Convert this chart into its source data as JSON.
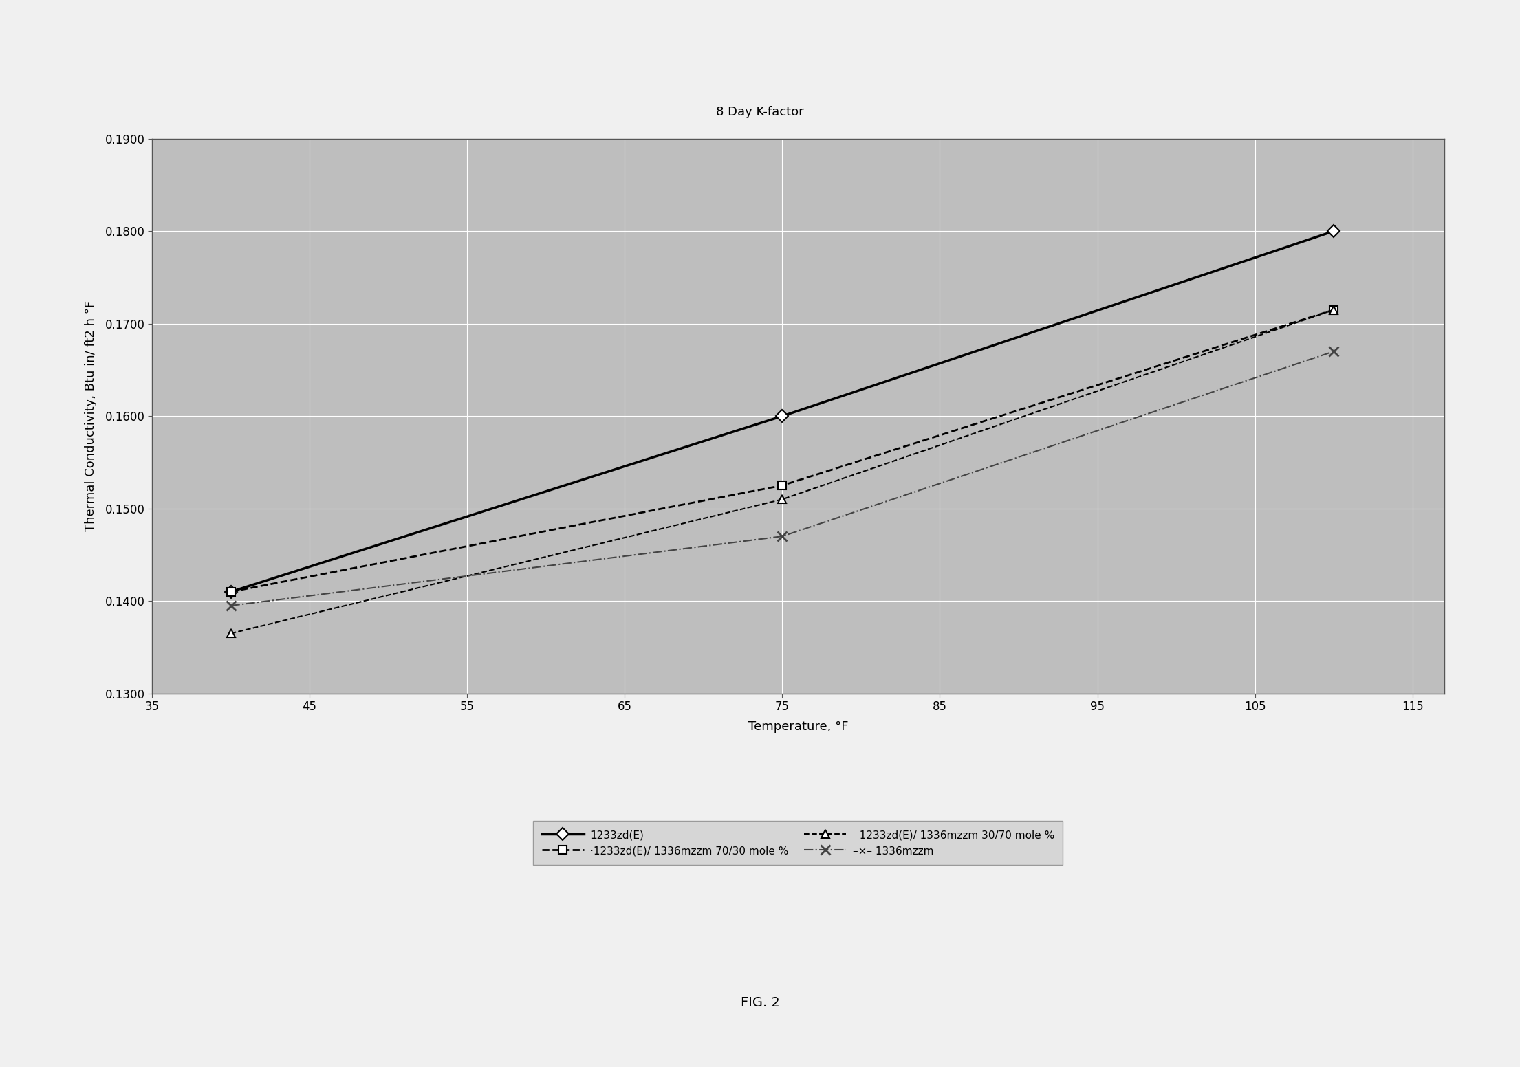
{
  "title": "8 Day K-factor",
  "xlabel": "Temperature, °F",
  "ylabel": "Thermal Conductivity, Btu in/ ft2 h °F",
  "fig_caption": "FIG. 2",
  "xlim": [
    35,
    117
  ],
  "ylim": [
    0.13,
    0.19
  ],
  "xticks": [
    35,
    45,
    55,
    65,
    75,
    85,
    95,
    105,
    115
  ],
  "yticks": [
    0.13,
    0.14,
    0.15,
    0.16,
    0.17,
    0.18,
    0.19
  ],
  "series": [
    {
      "label": "1233zd(E)",
      "x": [
        40,
        75,
        110
      ],
      "y": [
        0.141,
        0.16,
        0.18
      ],
      "color": "#000000",
      "linestyle": "-",
      "linewidth": 2.5,
      "marker": "D",
      "markersize": 9,
      "markerfacecolor": "white",
      "markeredgecolor": "#000000",
      "markeredgewidth": 1.5
    },
    {
      "label": "·1233zd(E)/ 1336mzzm 70/30 mole %",
      "label_display": "·1233zd(E)/ 1336mzzm 70/30 mole %",
      "x": [
        40,
        75,
        110
      ],
      "y": [
        0.141,
        0.1525,
        0.1715
      ],
      "color": "#000000",
      "linestyle": "--",
      "linewidth": 2.0,
      "marker": "s",
      "markersize": 9,
      "markerfacecolor": "white",
      "markeredgecolor": "#000000",
      "markeredgewidth": 1.5
    },
    {
      "label": "  1233zd(E)/ 1336mzzm 30/70 mole %",
      "x": [
        40,
        75,
        110
      ],
      "y": [
        0.1365,
        0.151,
        0.1715
      ],
      "color": "#000000",
      "linestyle": "--",
      "linewidth": 1.5,
      "marker": "^",
      "markersize": 9,
      "markerfacecolor": "white",
      "markeredgecolor": "#000000",
      "markeredgewidth": 1.5
    },
    {
      "label": "–×– 1336mzzm",
      "label_display": "–×– 1336mzzm",
      "x": [
        40,
        75,
        110
      ],
      "y": [
        0.1395,
        0.147,
        0.167
      ],
      "color": "#444444",
      "linestyle": "-.",
      "linewidth": 1.5,
      "marker": "x",
      "markersize": 10,
      "markerfacecolor": "#444444",
      "markeredgecolor": "#444444",
      "markeredgewidth": 2.0
    }
  ],
  "fig_bg_color": "#f0f0f0",
  "plot_bg_color": "#bebebe",
  "grid_color": "#ffffff",
  "title_fontsize": 13,
  "label_fontsize": 13,
  "tick_fontsize": 12,
  "legend_fontsize": 11,
  "caption_fontsize": 14
}
